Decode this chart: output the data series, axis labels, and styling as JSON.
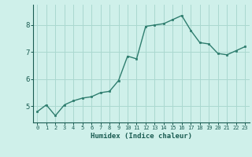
{
  "x": [
    0,
    1,
    2,
    3,
    4,
    5,
    6,
    7,
    8,
    9,
    10,
    11,
    12,
    13,
    14,
    15,
    16,
    17,
    18,
    19,
    20,
    21,
    22,
    23
  ],
  "y": [
    4.8,
    5.05,
    4.65,
    5.05,
    5.2,
    5.3,
    5.35,
    5.5,
    5.55,
    5.95,
    6.85,
    6.75,
    7.95,
    8.0,
    8.05,
    8.2,
    8.35,
    7.8,
    7.35,
    7.3,
    6.95,
    6.9,
    7.05,
    7.2
  ],
  "xlabel": "Humidex (Indice chaleur)",
  "line_color": "#2e7d6e",
  "marker_color": "#2e7d6e",
  "bg_color": "#cff0ea",
  "grid_color": "#aad8d0",
  "text_color": "#1a5c52",
  "ylim": [
    4.4,
    8.75
  ],
  "xlim": [
    -0.5,
    23.5
  ],
  "yticks": [
    5,
    6,
    7,
    8
  ],
  "xticks": [
    0,
    1,
    2,
    3,
    4,
    5,
    6,
    7,
    8,
    9,
    10,
    11,
    12,
    13,
    14,
    15,
    16,
    17,
    18,
    19,
    20,
    21,
    22,
    23
  ]
}
